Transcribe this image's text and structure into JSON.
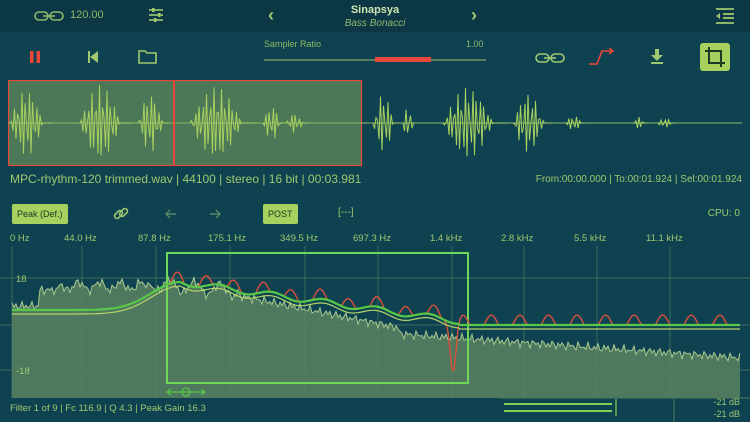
{
  "header": {
    "bpm": "120.00",
    "song_title": "Sinapsya",
    "song_artist": "Bass Bonacci",
    "prev_label": "‹",
    "next_label": "›"
  },
  "controls": {
    "sampler_ratio_label": "Sampler Ratio",
    "sampler_ratio_value": "1.00",
    "sampler_ratio_fraction": 0.5
  },
  "file": {
    "info": "MPC-rhythm-120 trimmed.wav | 44100 | stereo | 16 bit | 00:03.981",
    "range": "From:00:00.000 | To:00:01.924 | Sel:00:01.924",
    "selection_fraction": 0.48
  },
  "analyzer": {
    "peak_button": "Peak (Def.)",
    "post_button": "POST",
    "dashes": "[---]",
    "cpu": "CPU: 0",
    "freq_labels": [
      "0 Hz",
      "44.0 Hz",
      "87.8 Hz",
      "175.1 Hz",
      "349.5 Hz",
      "697.3 Hz",
      "1.4 kHz",
      "2.8 kHz",
      "5.5 kHz",
      "11.1 kHz"
    ],
    "y_top": "18",
    "y_bottom": "-18",
    "filter_info": "Filter 1 of 9 | Fc 116.9 | Q 4.3 | Peak Gain 16.3",
    "meter_l": "-21 dB",
    "meter_r": "-21 dB"
  },
  "colors": {
    "background": "#0f4250",
    "accent": "#a7d05f",
    "record_red": "#e8473a"
  }
}
